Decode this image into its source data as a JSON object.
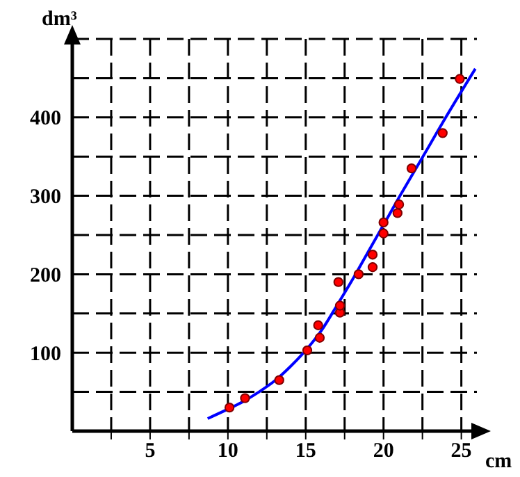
{
  "chart_data": {
    "type": "scatter",
    "xlabel": "cm",
    "ylabel": "dm³",
    "xlim": [
      0,
      26
    ],
    "ylim": [
      0,
      500
    ],
    "xticks": [
      {
        "value": 2.5,
        "label": null
      },
      5,
      {
        "value": 7.5,
        "label": null
      },
      10,
      {
        "value": 12.5,
        "label": null
      },
      15,
      {
        "value": 17.5,
        "label": null
      },
      20,
      {
        "value": 22.5,
        "label": null
      },
      25
    ],
    "yticks": [
      {
        "value": 50,
        "label": null
      },
      100,
      {
        "value": 150,
        "label": null
      },
      200,
      {
        "value": 250,
        "label": null
      },
      300,
      {
        "value": 350,
        "label": null
      },
      400,
      {
        "value": 450,
        "label": null
      },
      {
        "value": 500,
        "label": null
      }
    ],
    "grid": true,
    "series": [
      {
        "marker": "circle",
        "color": "#ff0000",
        "x": [
          10.1,
          11.1,
          13.3,
          15.1,
          15.9,
          15.8,
          17.2,
          17.2,
          17.1,
          18.4,
          19.3,
          19.3,
          20,
          20,
          20.9,
          21,
          21.8,
          23.8,
          24.9
        ],
        "values": [
          30,
          42,
          65,
          103,
          119,
          135,
          151,
          160,
          190,
          200,
          209,
          225,
          252,
          266,
          278,
          289,
          335,
          380,
          449
        ]
      },
      {
        "type": "line",
        "marker": "none",
        "color": "#0000ff",
        "x": [
          8.7,
          10,
          11,
          12,
          13,
          14,
          15,
          16,
          17,
          18,
          19,
          20,
          21,
          22,
          23,
          24,
          25.9
        ],
        "values": [
          16,
          28,
          38,
          50,
          64,
          82,
          103,
          128,
          160,
          193,
          228,
          263,
          298,
          332,
          366,
          400,
          462
        ]
      }
    ]
  }
}
